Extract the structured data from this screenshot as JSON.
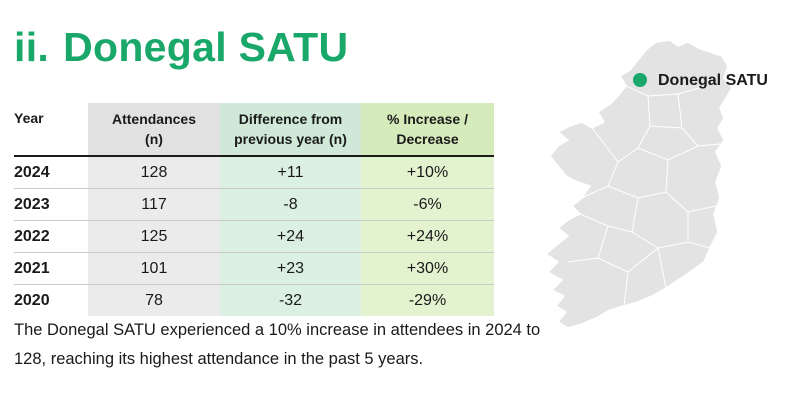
{
  "section": {
    "number": "ii.",
    "title": "Donegal SATU"
  },
  "table": {
    "headers": {
      "year": "Year",
      "attendances": [
        "Attendances",
        "(n)"
      ],
      "difference": [
        "Difference from",
        "previous year (n)"
      ],
      "percent": [
        "% Increase /",
        "Decrease"
      ]
    },
    "rows": [
      {
        "year": "2024",
        "attendances": "128",
        "difference": "+11",
        "percent": "+10%"
      },
      {
        "year": "2023",
        "attendances": "117",
        "difference": "-8",
        "percent": "-6%"
      },
      {
        "year": "2022",
        "attendances": "125",
        "difference": "+24",
        "percent": "+24%"
      },
      {
        "year": "2021",
        "attendances": "101",
        "difference": "+23",
        "percent": "+30%"
      },
      {
        "year": "2020",
        "attendances": "78",
        "difference": "-32",
        "percent": "-29%"
      }
    ]
  },
  "summary": "The Donegal SATU experienced a 10% increase in attendees in 2024 to 128, reaching its highest attendance in the past 5 years.",
  "map": {
    "marker_label": "Donegal SATU",
    "marker_color": "#1aa86a",
    "land_color": "#e3e3e3",
    "border_color": "#ffffff"
  },
  "colors": {
    "title": "#1aa86a"
  }
}
